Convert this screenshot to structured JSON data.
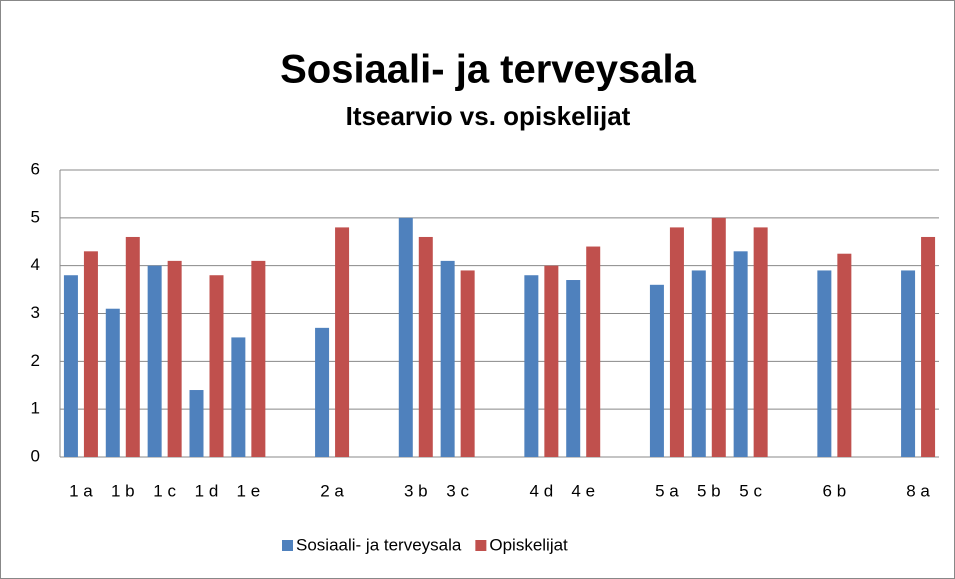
{
  "chart_data": {
    "type": "bar",
    "title": "Sosiaali- ja terveysala",
    "subtitle": "Itsearvio vs. opiskelijat",
    "categories": [
      "1 a",
      "1 b",
      "1 c",
      "1 d",
      "1 e",
      null,
      "2 a",
      null,
      "3 b",
      "3 c",
      null,
      "4 d",
      "4 e",
      null,
      "5 a",
      "5 b",
      "5 c",
      null,
      "6 b",
      null,
      "8 a"
    ],
    "series": [
      {
        "name": "Sosiaali- ja terveysala",
        "color": "#4f81bd",
        "values": [
          3.8,
          3.1,
          4.0,
          1.4,
          2.5,
          null,
          2.7,
          null,
          5.0,
          4.1,
          null,
          3.8,
          3.7,
          null,
          3.6,
          3.9,
          4.3,
          null,
          3.9,
          null,
          3.9
        ]
      },
      {
        "name": "Opiskelijat",
        "color": "#c0504d",
        "values": [
          4.3,
          4.6,
          4.1,
          3.8,
          4.1,
          null,
          4.8,
          null,
          4.6,
          3.9,
          null,
          4.0,
          4.4,
          null,
          4.8,
          5.0,
          4.8,
          null,
          4.25,
          null,
          4.6
        ]
      }
    ],
    "ylim": [
      0,
      6
    ],
    "yticks": [
      0,
      1,
      2,
      3,
      4,
      5,
      6
    ],
    "grid": true,
    "legend": "bottom"
  }
}
